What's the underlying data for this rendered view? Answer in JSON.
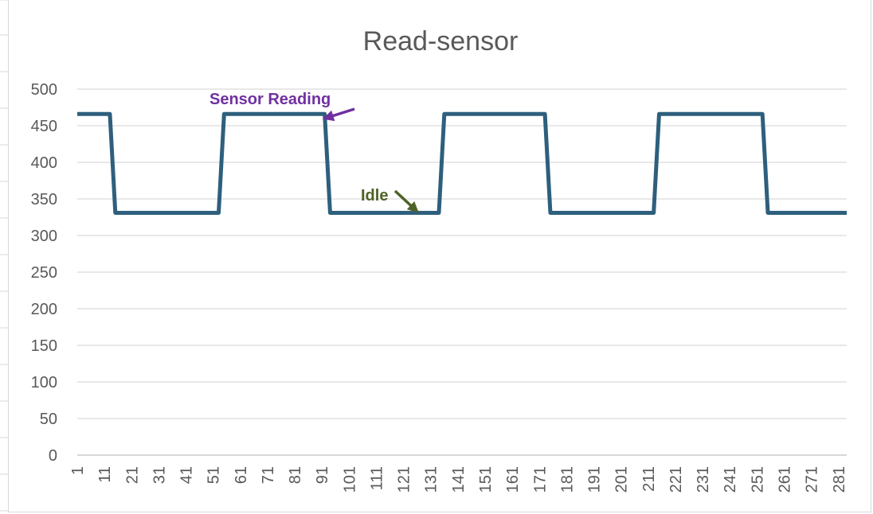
{
  "chart_data": {
    "type": "line",
    "title": "Read-sensor",
    "xlabel": "",
    "ylabel": "",
    "ylim": [
      0,
      500
    ],
    "ytick_step": 50,
    "xlim": [
      1,
      284
    ],
    "x_tick_labels": [
      "1",
      "11",
      "21",
      "31",
      "41",
      "51",
      "61",
      "71",
      "81",
      "91",
      "101",
      "111",
      "121",
      "131",
      "141",
      "151",
      "161",
      "171",
      "181",
      "191",
      "201",
      "211",
      "221",
      "231",
      "241",
      "251",
      "261",
      "271",
      "281"
    ],
    "grid": true,
    "legend": "none",
    "series": [
      {
        "color": "#2e5f7d",
        "segments": [
          {
            "x_start": 1,
            "x_end": 13,
            "level": 466
          },
          {
            "x_start": 15,
            "x_end": 53,
            "level": 331
          },
          {
            "x_start": 55,
            "x_end": 92,
            "level": 466
          },
          {
            "x_start": 94,
            "x_end": 134,
            "level": 331
          },
          {
            "x_start": 136,
            "x_end": 173,
            "level": 466
          },
          {
            "x_start": 175,
            "x_end": 213,
            "level": 331
          },
          {
            "x_start": 215,
            "x_end": 253,
            "level": 466
          },
          {
            "x_start": 255,
            "x_end": 284,
            "level": 331
          }
        ]
      }
    ],
    "annotations": [
      {
        "text": "Sensor Reading",
        "color": "#7030a0",
        "arrow_to": {
          "x": 92,
          "y": 460
        }
      },
      {
        "text": "Idle",
        "color": "#4f6228",
        "arrow_to": {
          "x": 126,
          "y": 333
        }
      }
    ]
  }
}
